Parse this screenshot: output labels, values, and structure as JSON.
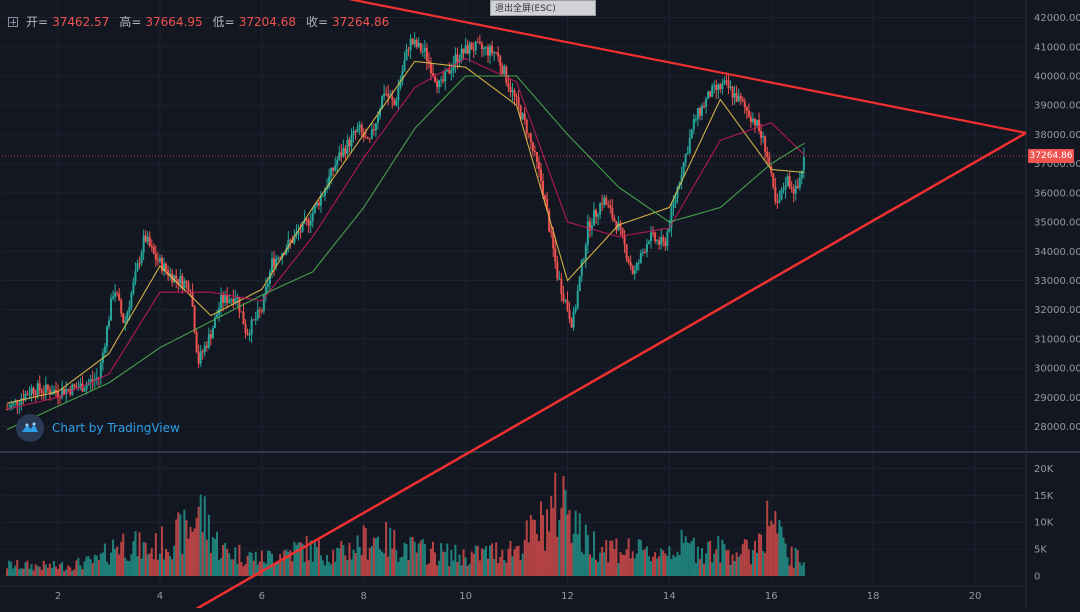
{
  "header": {
    "open_label": "开=",
    "open_value": "37462.57",
    "high_label": "高=",
    "high_value": "37664.95",
    "low_label": "低=",
    "low_value": "37204.68",
    "close_label": "收=",
    "close_value": "37264.86"
  },
  "exit_fullscreen_label": "退出全屏(ESC)",
  "watermark_label": "Chart by TradingView",
  "current_price_label": "37264.86",
  "colors": {
    "background": "#131722",
    "up": "#26a69a",
    "down": "#ef5350",
    "trendline": "#f23030",
    "ma_fast": "#e5c04a",
    "ma_mid": "#c2185b",
    "ma_slow": "#4caf50",
    "grid": "#1e2230",
    "axis_text": "#9598a1"
  },
  "chart_data": {
    "type": "candlestick",
    "title": "",
    "price_axis": {
      "ticks": [
        28000,
        29000,
        30000,
        31000,
        32000,
        33000,
        34000,
        35000,
        36000,
        37000,
        38000,
        39000,
        40000,
        41000,
        42000
      ],
      "tick_labels": [
        "28000.00",
        "29000.00",
        "30000.00",
        "31000.00",
        "32000.00",
        "33000.00",
        "34000.00",
        "35000.00",
        "36000.00",
        "37000.00",
        "38000.00",
        "39000.00",
        "40000.00",
        "41000.00",
        "42000.00"
      ],
      "range": [
        27200,
        42600
      ]
    },
    "volume_axis": {
      "ticks": [
        0,
        5000,
        10000,
        15000,
        20000
      ],
      "tick_labels": [
        "0",
        "5K",
        "10K",
        "15K",
        "20K"
      ],
      "range": [
        -1500,
        22500
      ]
    },
    "time_axis": {
      "ticks": [
        2,
        4,
        6,
        8,
        10,
        12,
        14,
        16,
        18,
        20
      ],
      "tick_labels": [
        "2",
        "4",
        "6",
        "8",
        "10",
        "12",
        "14",
        "16",
        "18",
        "20"
      ],
      "range": [
        0.9,
        21.0
      ]
    },
    "price_path": [
      [
        1.0,
        28600
      ],
      [
        1.5,
        29300
      ],
      [
        2.0,
        29200
      ],
      [
        2.5,
        29400
      ],
      [
        2.8,
        29700
      ],
      [
        3.1,
        32800
      ],
      [
        3.3,
        31500
      ],
      [
        3.7,
        34500
      ],
      [
        3.9,
        33800
      ],
      [
        4.2,
        33200
      ],
      [
        4.6,
        32800
      ],
      [
        4.75,
        30200
      ],
      [
        5.0,
        31200
      ],
      [
        5.2,
        32300
      ],
      [
        5.5,
        32500
      ],
      [
        5.7,
        31200
      ],
      [
        6.0,
        32000
      ],
      [
        6.2,
        33600
      ],
      [
        6.5,
        34200
      ],
      [
        6.9,
        35000
      ],
      [
        7.2,
        36000
      ],
      [
        7.5,
        37200
      ],
      [
        7.9,
        38200
      ],
      [
        8.1,
        37600
      ],
      [
        8.4,
        39500
      ],
      [
        8.6,
        39000
      ],
      [
        8.9,
        41200
      ],
      [
        9.2,
        40800
      ],
      [
        9.5,
        39600
      ],
      [
        9.8,
        40600
      ],
      [
        10.1,
        41000
      ],
      [
        10.6,
        40800
      ],
      [
        10.9,
        39500
      ],
      [
        11.2,
        38200
      ],
      [
        11.5,
        36300
      ],
      [
        11.8,
        33200
      ],
      [
        12.1,
        31500
      ],
      [
        12.4,
        34800
      ],
      [
        12.7,
        35800
      ],
      [
        13.0,
        34800
      ],
      [
        13.3,
        33200
      ],
      [
        13.6,
        34500
      ],
      [
        13.9,
        34200
      ],
      [
        14.2,
        36500
      ],
      [
        14.5,
        38500
      ],
      [
        14.8,
        39400
      ],
      [
        15.1,
        39700
      ],
      [
        15.4,
        39100
      ],
      [
        15.7,
        38400
      ],
      [
        15.9,
        37500
      ],
      [
        16.1,
        35400
      ],
      [
        16.3,
        36500
      ],
      [
        16.5,
        36000
      ],
      [
        16.65,
        37260
      ]
    ],
    "moving_averages": [
      {
        "path": [
          [
            1.0,
            28800
          ],
          [
            2.0,
            29200
          ],
          [
            3.0,
            30500
          ],
          [
            4.0,
            33500
          ],
          [
            5.0,
            31800
          ],
          [
            6.0,
            32700
          ],
          [
            7.0,
            35500
          ],
          [
            8.0,
            38000
          ],
          [
            9.0,
            40500
          ],
          [
            10.0,
            40300
          ],
          [
            11.0,
            39000
          ],
          [
            12.0,
            33000
          ],
          [
            13.0,
            34900
          ],
          [
            14.0,
            35500
          ],
          [
            15.0,
            39200
          ],
          [
            16.0,
            36800
          ],
          [
            16.65,
            36700
          ]
        ]
      },
      {
        "path": [
          [
            1.0,
            28600
          ],
          [
            2.0,
            29000
          ],
          [
            3.0,
            29800
          ],
          [
            4.0,
            32600
          ],
          [
            5.0,
            32600
          ],
          [
            6.0,
            32300
          ],
          [
            7.0,
            34500
          ],
          [
            8.0,
            37200
          ],
          [
            9.0,
            39600
          ],
          [
            10.0,
            40600
          ],
          [
            11.0,
            39800
          ],
          [
            12.0,
            35000
          ],
          [
            13.0,
            34500
          ],
          [
            14.0,
            34800
          ],
          [
            15.0,
            37800
          ],
          [
            16.0,
            38400
          ],
          [
            16.65,
            37300
          ]
        ]
      },
      {
        "path": [
          [
            1.0,
            27900
          ],
          [
            2.0,
            28700
          ],
          [
            3.0,
            29500
          ],
          [
            4.0,
            30700
          ],
          [
            5.0,
            31600
          ],
          [
            6.0,
            32500
          ],
          [
            7.0,
            33300
          ],
          [
            8.0,
            35500
          ],
          [
            9.0,
            38200
          ],
          [
            10.0,
            40000
          ],
          [
            11.0,
            40000
          ],
          [
            12.0,
            38000
          ],
          [
            13.0,
            36200
          ],
          [
            14.0,
            35000
          ],
          [
            15.0,
            35500
          ],
          [
            16.0,
            37000
          ],
          [
            16.65,
            37700
          ]
        ]
      }
    ],
    "trendlines": [
      {
        "from": [
          4.5,
          28700
        ],
        "to": [
          21.0,
          38050
        ]
      },
      {
        "from": [
          7.5,
          42500
        ],
        "to": [
          21.0,
          38050
        ]
      }
    ],
    "volume_profile": [
      [
        1.0,
        2500
      ],
      [
        2.0,
        2200
      ],
      [
        2.8,
        3500
      ],
      [
        3.2,
        8000
      ],
      [
        3.8,
        6000
      ],
      [
        4.6,
        11000
      ],
      [
        4.75,
        16000
      ],
      [
        5.2,
        6000
      ],
      [
        6.0,
        4000
      ],
      [
        6.8,
        6500
      ],
      [
        7.5,
        5000
      ],
      [
        8.2,
        9000
      ],
      [
        9.0,
        6000
      ],
      [
        10.0,
        4500
      ],
      [
        11.0,
        6500
      ],
      [
        11.5,
        12000
      ],
      [
        12.0,
        19000
      ],
      [
        12.3,
        8000
      ],
      [
        13.0,
        6500
      ],
      [
        13.6,
        5000
      ],
      [
        14.2,
        7000
      ],
      [
        15.0,
        6000
      ],
      [
        15.6,
        5500
      ],
      [
        16.0,
        14000
      ],
      [
        16.3,
        5000
      ],
      [
        16.65,
        3500
      ]
    ]
  }
}
